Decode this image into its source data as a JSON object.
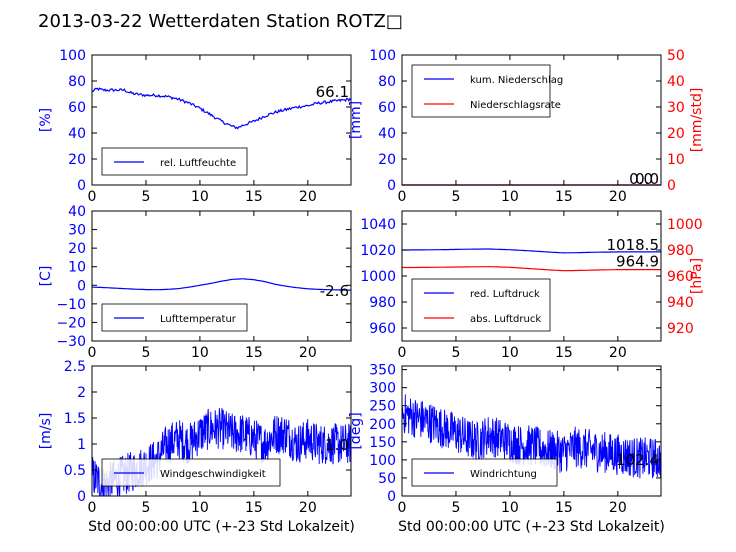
{
  "title": "2013-03-22 Wetterdaten Station ROTZ□",
  "chart_data": [
    {
      "id": "humidity",
      "type": "line",
      "ylabel": "[%]",
      "xlim": [
        0,
        24
      ],
      "ylim": [
        0,
        100
      ],
      "xticks": [
        0,
        5,
        10,
        15,
        20
      ],
      "yticks": [
        0,
        20,
        40,
        60,
        80,
        100
      ],
      "current_value": "66.1",
      "legend": {
        "placement": "lower-left",
        "entries": [
          "rel. Luftfeuchte"
        ]
      },
      "series": [
        {
          "name": "rel. Luftfeuchte",
          "color": "#0000ff",
          "x": [
            0,
            0.5,
            1,
            2,
            3,
            3.5,
            4,
            5,
            6,
            7,
            8,
            9,
            10,
            11,
            12,
            12.5,
            13,
            13.5,
            14,
            15,
            16,
            17,
            18,
            19,
            20,
            21,
            22,
            23,
            24
          ],
          "y": [
            72,
            74,
            73,
            73,
            73,
            71,
            70,
            69,
            69,
            68,
            66,
            63,
            59,
            54,
            49,
            47,
            45,
            44,
            46,
            49,
            53,
            56,
            58,
            60,
            61,
            63,
            64,
            65,
            66.1
          ]
        }
      ]
    },
    {
      "id": "precipitation",
      "type": "line",
      "ylabel": "[mm]",
      "ylabel_right": "[mm/std]",
      "xlim": [
        0,
        24
      ],
      "ylim": [
        0,
        100
      ],
      "ylim_right": [
        0,
        50
      ],
      "xticks": [
        0,
        5,
        10,
        15,
        20
      ],
      "yticks": [
        0,
        20,
        40,
        60,
        80,
        100
      ],
      "yticks_right": [
        0,
        10,
        20,
        30,
        40,
        50
      ],
      "current_values": [
        "0.0",
        "0.0"
      ],
      "legend": {
        "placement": "top-left",
        "entries": [
          "kum. Niederschlag",
          "Niederschlagsrate"
        ]
      },
      "series": [
        {
          "name": "kum. Niederschlag",
          "color": "#0000ff",
          "axis": "left",
          "x": [
            0,
            24
          ],
          "y": [
            0,
            0
          ]
        },
        {
          "name": "Niederschlagsrate",
          "color": "#ff0000",
          "axis": "right",
          "x": [
            0,
            24
          ],
          "y": [
            0,
            0
          ]
        }
      ]
    },
    {
      "id": "temperature",
      "type": "line",
      "ylabel": "[C]",
      "xlim": [
        0,
        24
      ],
      "ylim": [
        -30,
        40
      ],
      "xticks": [
        0,
        5,
        10,
        15,
        20
      ],
      "yticks": [
        -30,
        -20,
        -10,
        0,
        10,
        20,
        30,
        40
      ],
      "current_value": "-2.6",
      "legend": {
        "placement": "lower-left",
        "entries": [
          "Lufttemperatur"
        ]
      },
      "series": [
        {
          "name": "Lufttemperatur",
          "color": "#0000ff",
          "x": [
            0,
            1,
            2,
            3,
            4,
            5,
            6,
            7,
            8,
            9,
            10,
            11,
            12,
            13,
            14,
            15,
            16,
            17,
            18,
            19,
            20,
            21,
            22,
            23,
            24
          ],
          "y": [
            -1.0,
            -1.2,
            -1.5,
            -1.8,
            -2.1,
            -2.3,
            -2.4,
            -2.2,
            -1.8,
            -1.0,
            0.0,
            1.0,
            2.2,
            3.2,
            3.5,
            3.0,
            2.0,
            0.5,
            -0.5,
            -1.3,
            -1.9,
            -2.2,
            -2.4,
            -2.5,
            -2.6
          ]
        }
      ]
    },
    {
      "id": "pressure",
      "type": "line",
      "ylabel_right": "[hPa]",
      "xlim": [
        0,
        24
      ],
      "ylim": [
        950,
        1050
      ],
      "ylim_right": [
        910,
        1010
      ],
      "xticks": [
        0,
        5,
        10,
        15,
        20
      ],
      "yticks": [
        960,
        980,
        1000,
        1020,
        1040
      ],
      "yticks_right": [
        920,
        940,
        960,
        980,
        1000
      ],
      "current_values": [
        "1018.5",
        "964.9"
      ],
      "legend": {
        "placement": "lower-left",
        "entries": [
          "red. Luftdruck",
          "abs. Luftdruck"
        ]
      },
      "series": [
        {
          "name": "red. Luftdruck",
          "color": "#0000ff",
          "axis": "left",
          "x": [
            0,
            2,
            4,
            6,
            8,
            10,
            12,
            14,
            15,
            16,
            18,
            20,
            22,
            24
          ],
          "y": [
            1020.0,
            1020.1,
            1020.3,
            1020.6,
            1020.8,
            1020.2,
            1019.3,
            1018.2,
            1017.8,
            1017.9,
            1018.3,
            1018.5,
            1018.5,
            1018.5
          ]
        },
        {
          "name": "abs. Luftdruck",
          "color": "#ff0000",
          "axis": "right",
          "x": [
            0,
            2,
            4,
            6,
            8,
            10,
            12,
            14,
            15,
            16,
            18,
            20,
            22,
            24
          ],
          "y": [
            966.5,
            966.6,
            966.8,
            967.0,
            967.2,
            966.7,
            965.6,
            964.5,
            964.1,
            964.2,
            964.6,
            964.9,
            964.9,
            964.9
          ]
        }
      ]
    },
    {
      "id": "wind-speed",
      "type": "line",
      "ylabel": "[m/s]",
      "xlim": [
        0,
        24
      ],
      "ylim": [
        0,
        2.5
      ],
      "xticks": [
        0,
        5,
        10,
        15,
        20
      ],
      "yticks": [
        0.0,
        0.5,
        1.0,
        1.5,
        2.0,
        2.5
      ],
      "xlabel": "Std 00:00:00 UTC (+-23 Std Lokalzeit)",
      "current_value": "1.0",
      "legend": {
        "placement": "lower-left",
        "entries": [
          "Windgeschwindigkeit"
        ]
      },
      "series": [
        {
          "name": "Windgeschwindigkeit",
          "color": "#0000ff",
          "noisy": true,
          "x": [
            0,
            1,
            2,
            3,
            4,
            5,
            6,
            7,
            8,
            9,
            10,
            11,
            12,
            13,
            14,
            15,
            16,
            17,
            18,
            19,
            20,
            21,
            22,
            23,
            24
          ],
          "y": [
            0.4,
            0.2,
            0.3,
            0.4,
            0.5,
            0.6,
            0.7,
            1.0,
            1.1,
            1.0,
            1.2,
            1.3,
            1.3,
            1.2,
            1.2,
            1.1,
            1.0,
            1.2,
            1.2,
            1.0,
            1.1,
            1.0,
            1.0,
            1.0,
            1.0
          ]
        }
      ]
    },
    {
      "id": "wind-direction",
      "type": "line",
      "ylabel": "[deg]",
      "xlim": [
        0,
        24
      ],
      "ylim": [
        0,
        360
      ],
      "xticks": [
        0,
        5,
        10,
        15,
        20
      ],
      "yticks": [
        0,
        50,
        100,
        150,
        200,
        250,
        300,
        350
      ],
      "xlabel": "Std 00:00:00 UTC (+-23 Std Lokalzeit)",
      "current_value": "102.4",
      "legend": {
        "placement": "lower-left",
        "entries": [
          "Windrichtung"
        ]
      },
      "series": [
        {
          "name": "Windrichtung",
          "color": "#0000ff",
          "noisy": true,
          "x": [
            0,
            1,
            2,
            3,
            4,
            5,
            6,
            7,
            8,
            9,
            10,
            11,
            12,
            13,
            14,
            15,
            16,
            17,
            18,
            19,
            20,
            21,
            22,
            23,
            24
          ],
          "y": [
            230,
            220,
            210,
            200,
            185,
            175,
            160,
            150,
            170,
            160,
            150,
            140,
            140,
            130,
            125,
            120,
            135,
            130,
            125,
            120,
            115,
            110,
            105,
            105,
            102.4
          ]
        }
      ]
    }
  ]
}
